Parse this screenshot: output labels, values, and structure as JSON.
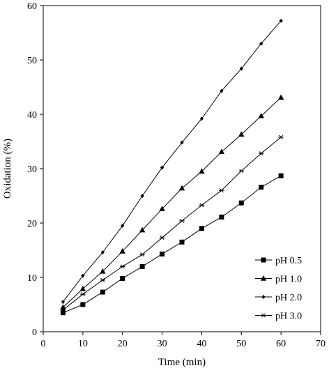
{
  "chart_data": {
    "type": "line",
    "title": "",
    "xlabel": "Time (min)",
    "ylabel": "Oxidation (%)",
    "xlim": [
      0,
      70
    ],
    "ylim": [
      0,
      60
    ],
    "xticks": [
      0,
      10,
      20,
      30,
      40,
      50,
      60,
      70
    ],
    "yticks": [
      0,
      10,
      20,
      30,
      40,
      50,
      60
    ],
    "grid": false,
    "legend_position": "bottom-right",
    "x": [
      5,
      10,
      15,
      20,
      25,
      30,
      35,
      40,
      45,
      50,
      55,
      60
    ],
    "series": [
      {
        "name": "pH 0.5",
        "marker": "square",
        "values": [
          3.5,
          5.0,
          7.3,
          9.8,
          12.0,
          14.3,
          16.5,
          19.0,
          21.1,
          23.7,
          26.6,
          28.7
        ]
      },
      {
        "name": "pH 1.0",
        "marker": "triangle",
        "values": [
          4.5,
          7.9,
          11.1,
          14.8,
          18.7,
          22.6,
          26.4,
          29.5,
          33.1,
          36.3,
          39.7,
          43.1
        ]
      },
      {
        "name": "pH 2.0",
        "marker": "diamond",
        "values": [
          5.5,
          10.3,
          14.6,
          19.5,
          25.0,
          30.2,
          34.8,
          39.2,
          44.3,
          48.4,
          53.0,
          57.2
        ]
      },
      {
        "name": "pH 3.0",
        "marker": "star",
        "values": [
          4.0,
          6.9,
          9.5,
          12.0,
          14.2,
          17.3,
          20.4,
          23.3,
          26.0,
          29.6,
          32.8,
          35.8
        ]
      }
    ]
  }
}
